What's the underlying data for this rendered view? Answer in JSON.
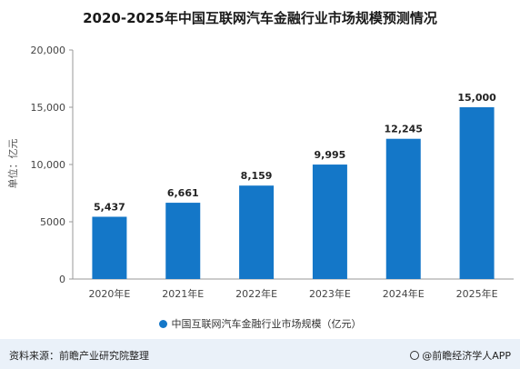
{
  "chart_data": {
    "type": "bar",
    "title": "2020-2025年中国互联网汽车金融行业市场规模预测情况",
    "ylabel": "单位：亿元",
    "categories": [
      "2020年E",
      "2021年E",
      "2022年E",
      "2023年E",
      "2024年E",
      "2025年E"
    ],
    "series": [
      {
        "name": "中国互联网汽车金融行业市场规模（亿元）",
        "values": [
          5437,
          6661,
          8159,
          9995,
          12245,
          15000
        ]
      }
    ],
    "data_labels": [
      "5,437",
      "6,661",
      "8,159",
      "9,995",
      "12,245",
      "15,000"
    ],
    "yticks": [
      0,
      5000,
      10000,
      15000,
      20000
    ],
    "ytick_labels": [
      "0",
      "5000",
      "10,000",
      "15,000",
      "20,000"
    ],
    "ylim": [
      0,
      20000
    ],
    "grid": false,
    "legend_position": "bottom",
    "bar_color": "#1477c8"
  },
  "footer": {
    "source": "资料来源：前瞻产业研究院整理",
    "brand": "@前瞻经济学人APP"
  }
}
